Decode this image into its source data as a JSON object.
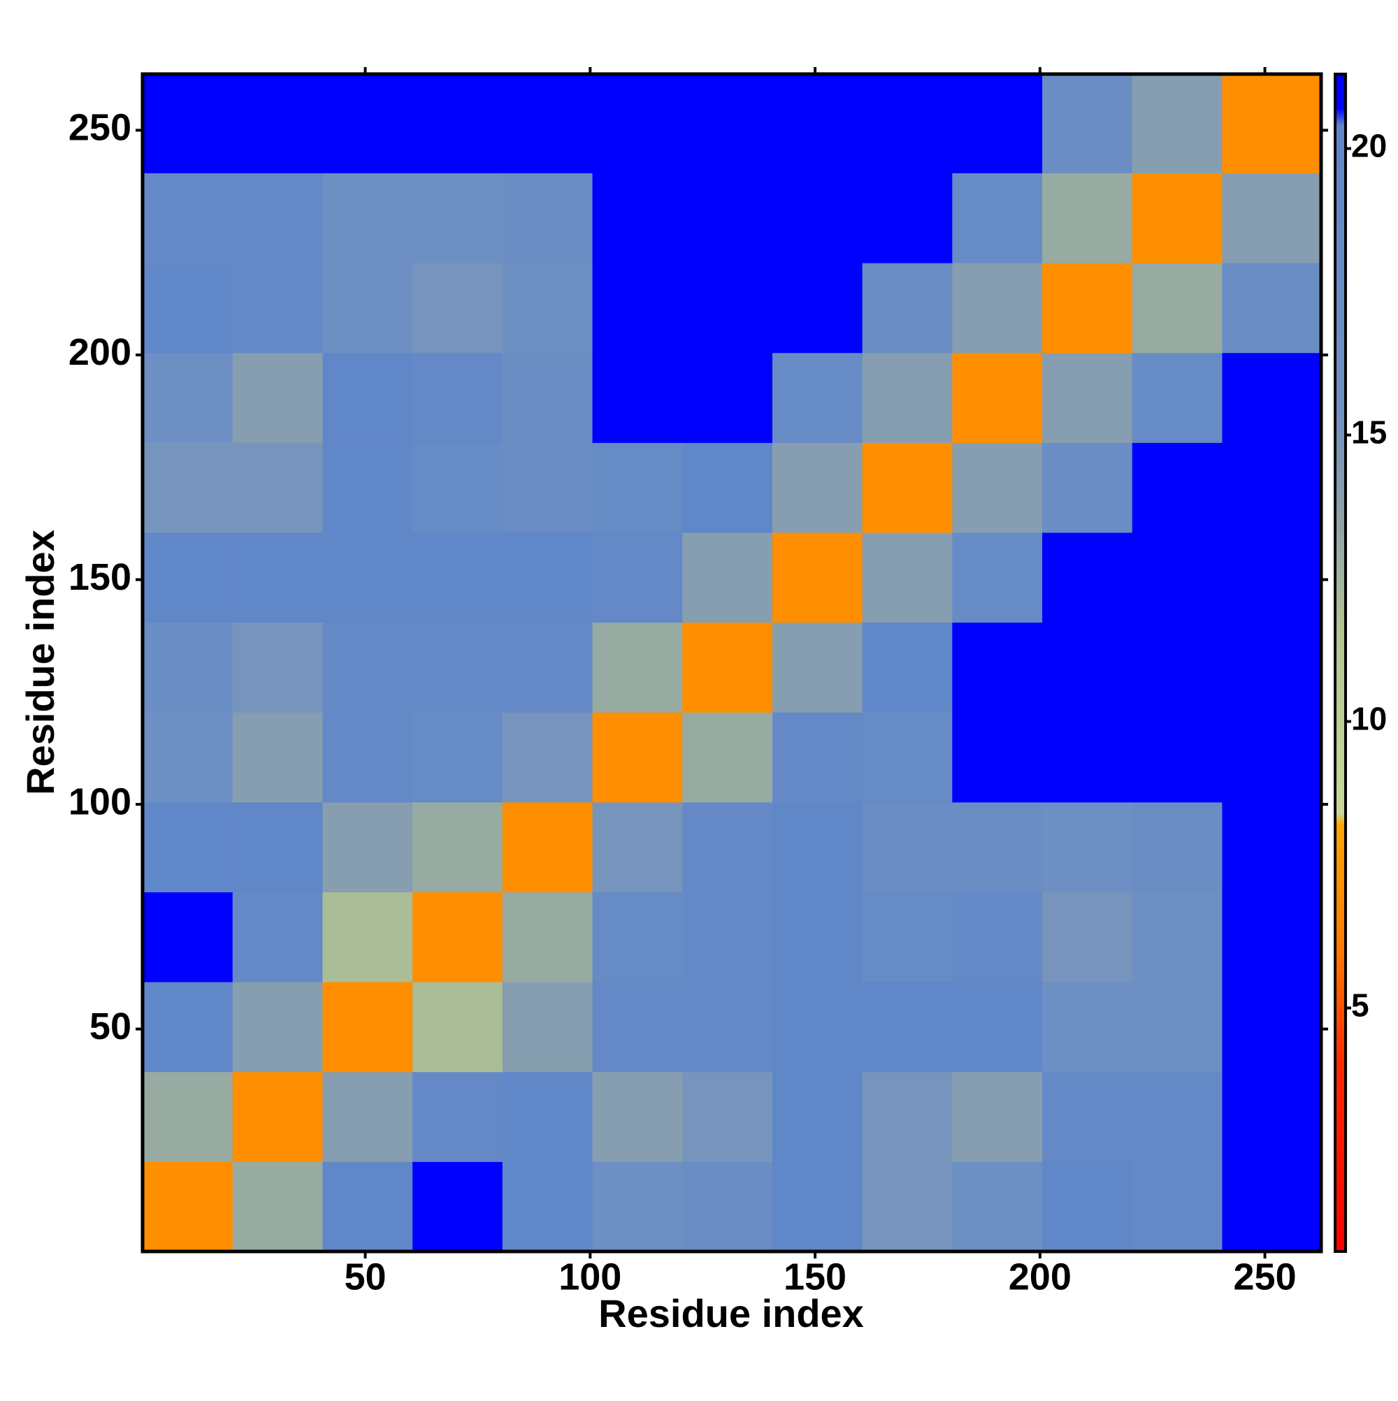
{
  "chart_data": {
    "type": "heatmap",
    "xlabel": "Residue index",
    "ylabel": "Residue index",
    "x_edges": [
      0.5,
      20.5,
      40.5,
      60.5,
      80.5,
      100.5,
      120.5,
      140.5,
      160.5,
      180.5,
      200.5,
      220.5,
      240.5,
      262.5
    ],
    "y_edges": [
      0.5,
      20.5,
      40.5,
      60.5,
      80.5,
      100.5,
      120.5,
      140.5,
      160.5,
      180.5,
      200.5,
      220.5,
      240.5,
      262.5
    ],
    "z": [
      [
        7,
        13,
        20,
        21,
        20,
        16,
        17,
        20,
        15,
        16,
        20,
        19,
        21
      ],
      [
        13,
        7,
        14,
        19,
        20,
        14,
        15,
        20,
        15,
        14,
        19,
        19,
        21
      ],
      [
        20,
        14,
        7,
        12,
        14,
        19,
        19,
        20,
        20,
        20,
        16,
        16,
        21
      ],
      [
        21,
        19,
        12,
        7,
        13,
        18,
        19,
        20,
        18,
        19,
        15,
        16,
        21
      ],
      [
        20,
        20,
        14,
        13,
        7,
        15,
        19,
        20,
        17,
        17,
        16,
        17,
        21
      ],
      [
        16,
        14,
        19,
        18,
        15,
        7,
        13,
        19,
        18,
        21,
        21,
        21,
        21
      ],
      [
        17,
        15,
        19,
        19,
        19,
        13,
        7,
        14,
        20,
        21,
        21,
        21,
        21
      ],
      [
        20,
        20,
        20,
        20,
        20,
        19,
        14,
        7,
        14,
        18,
        21,
        21,
        21
      ],
      [
        15,
        15,
        20,
        18,
        17,
        18,
        20,
        14,
        7,
        14,
        17,
        21,
        21
      ],
      [
        16,
        14,
        20,
        19,
        17,
        21,
        21,
        18,
        14,
        7,
        14,
        18,
        21
      ],
      [
        20,
        19,
        16,
        15,
        16,
        21,
        21,
        21,
        17,
        14,
        7,
        13,
        17
      ],
      [
        19,
        19,
        16,
        16,
        17,
        21,
        21,
        21,
        21,
        18,
        13,
        7,
        14
      ],
      [
        21,
        21,
        21,
        21,
        21,
        21,
        21,
        21,
        21,
        21,
        17,
        14,
        7
      ]
    ],
    "xlim": [
      0.5,
      262.5
    ],
    "ylim": [
      0.5,
      262.5
    ],
    "xticks": [
      50,
      100,
      150,
      200,
      250
    ],
    "yticks": [
      50,
      100,
      150,
      200,
      250
    ],
    "colorbar_lim": [
      0.75,
      21.3
    ],
    "colorbar_ticks": [
      5,
      10,
      15,
      20
    ],
    "colorscale": [
      {
        "value": 0.75,
        "color": "#ff0000"
      },
      {
        "value": 4,
        "color": "#ff2a00"
      },
      {
        "value": 6,
        "color": "#ff7a00"
      },
      {
        "value": 8.2,
        "color": "#ffa500"
      },
      {
        "value": 8.4,
        "color": "#c9d79a"
      },
      {
        "value": 11.5,
        "color": "#b3c690"
      },
      {
        "value": 13.5,
        "color": "#8ea2a8"
      },
      {
        "value": 15.5,
        "color": "#6f90c2"
      },
      {
        "value": 20.4,
        "color": "#5f86c8"
      },
      {
        "value": 20.7,
        "color": "#0000ff"
      },
      {
        "value": 21.3,
        "color": "#0000ff"
      }
    ]
  }
}
